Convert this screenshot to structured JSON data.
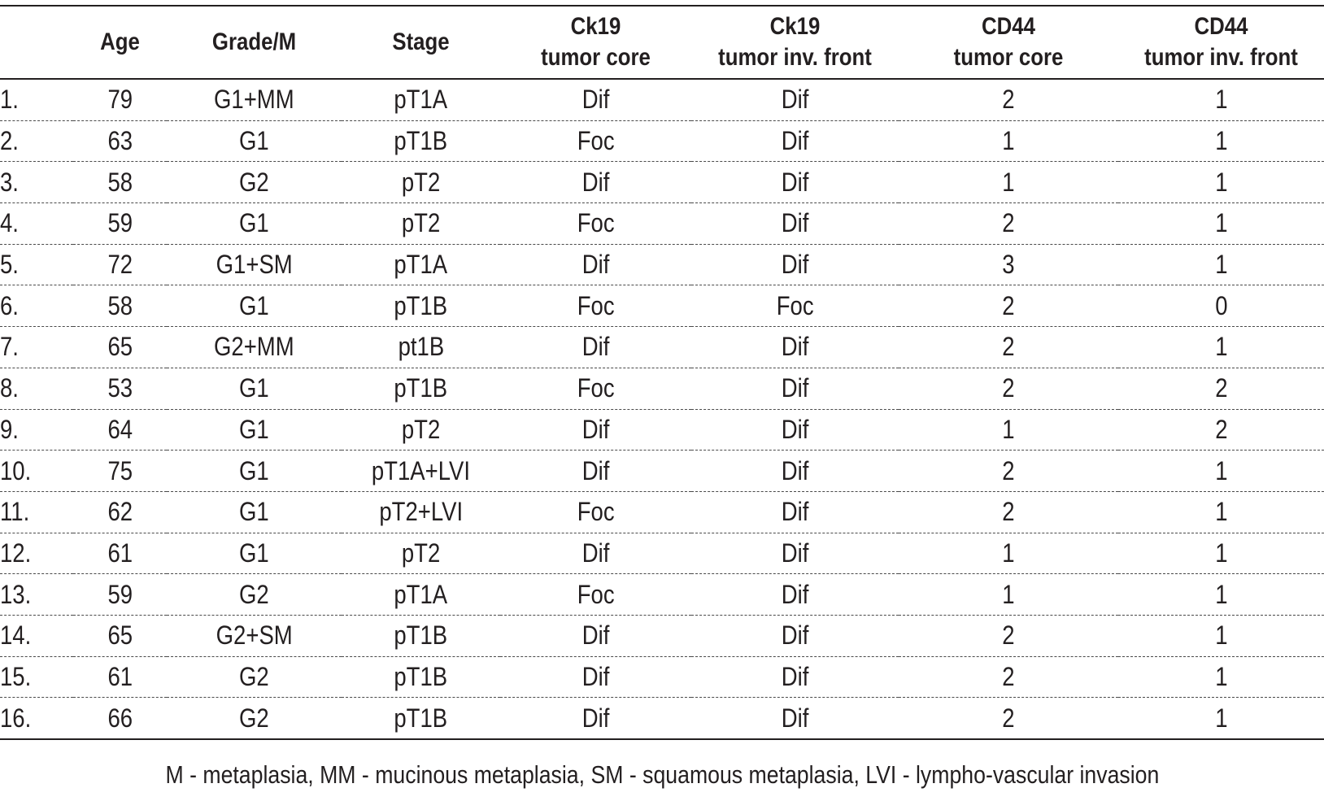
{
  "table": {
    "columns": [
      {
        "key": "id",
        "lines": [
          ""
        ]
      },
      {
        "key": "age",
        "lines": [
          "Age"
        ]
      },
      {
        "key": "grade",
        "lines": [
          "Grade/M"
        ]
      },
      {
        "key": "stage",
        "lines": [
          "Stage"
        ]
      },
      {
        "key": "ck19_core",
        "lines": [
          "Ck19",
          "tumor core"
        ]
      },
      {
        "key": "ck19_front",
        "lines": [
          "Ck19",
          "tumor inv. front"
        ]
      },
      {
        "key": "cd44_core",
        "lines": [
          "CD44",
          "tumor core"
        ]
      },
      {
        "key": "cd44_front",
        "lines": [
          "CD44",
          "tumor inv. front"
        ]
      }
    ],
    "rows": [
      [
        "1.",
        "79",
        "G1+MM",
        "pT1A",
        "Dif",
        "Dif",
        "2",
        "1"
      ],
      [
        "2.",
        "63",
        "G1",
        "pT1B",
        "Foc",
        "Dif",
        "1",
        "1"
      ],
      [
        "3.",
        "58",
        "G2",
        "pT2",
        "Dif",
        "Dif",
        "1",
        "1"
      ],
      [
        "4.",
        "59",
        "G1",
        "pT2",
        "Foc",
        "Dif",
        "2",
        "1"
      ],
      [
        "5.",
        "72",
        "G1+SM",
        "pT1A",
        "Dif",
        "Dif",
        "3",
        "1"
      ],
      [
        "6.",
        "58",
        "G1",
        "pT1B",
        "Foc",
        "Foc",
        "2",
        "0"
      ],
      [
        "7.",
        "65",
        "G2+MM",
        "pt1B",
        "Dif",
        "Dif",
        "2",
        "1"
      ],
      [
        "8.",
        "53",
        "G1",
        "pT1B",
        "Foc",
        "Dif",
        "2",
        "2"
      ],
      [
        "9.",
        "64",
        "G1",
        "pT2",
        "Dif",
        "Dif",
        "1",
        "2"
      ],
      [
        "10.",
        "75",
        "G1",
        "pT1A+LVI",
        "Dif",
        "Dif",
        "2",
        "1"
      ],
      [
        "11.",
        "62",
        "G1",
        "pT2+LVI",
        "Foc",
        "Dif",
        "2",
        "1"
      ],
      [
        "12.",
        "61",
        "G1",
        "pT2",
        "Dif",
        "Dif",
        "1",
        "1"
      ],
      [
        "13.",
        "59",
        "G2",
        "pT1A",
        "Foc",
        "Dif",
        "1",
        "1"
      ],
      [
        "14.",
        "65",
        "G2+SM",
        "pT1B",
        "Dif",
        "Dif",
        "2",
        "1"
      ],
      [
        "15.",
        "61",
        "G2",
        "pT1B",
        "Dif",
        "Dif",
        "2",
        "1"
      ],
      [
        "16.",
        "66",
        "G2",
        "pT1B",
        "Dif",
        "Dif",
        "2",
        "1"
      ]
    ]
  },
  "footnote": "M - metaplasia, MM - mucinous metaplasia, SM - squamous metaplasia, LVI - lympho-vascular invasion"
}
